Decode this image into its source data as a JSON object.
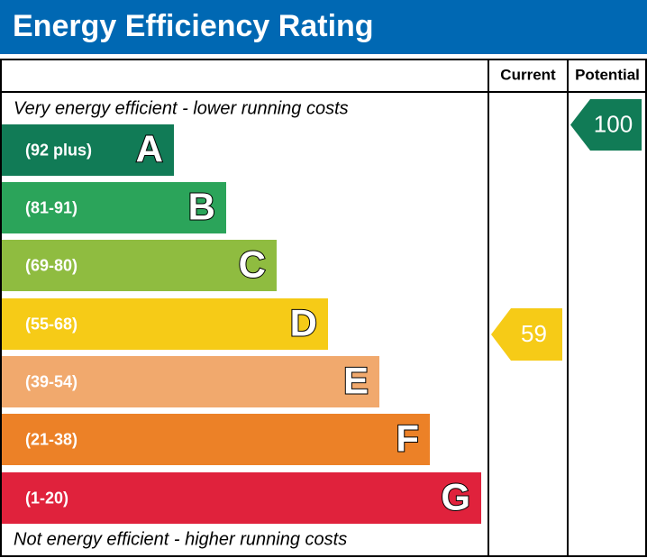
{
  "header": {
    "title": "Energy Efficiency Rating"
  },
  "table": {
    "columns": [
      "Current",
      "Potential"
    ],
    "top_note": "Very energy efficient - lower running costs",
    "bottom_note": "Not energy efficient - higher running costs",
    "bands": [
      {
        "range": "(92 plus)",
        "letter": "A",
        "color": "#117b56"
      },
      {
        "range": "(81-91)",
        "letter": "B",
        "color": "#2ba45a"
      },
      {
        "range": "(69-80)",
        "letter": "C",
        "color": "#8fbc40"
      },
      {
        "range": "(55-68)",
        "letter": "D",
        "color": "#f6cb17"
      },
      {
        "range": "(39-54)",
        "letter": "E",
        "color": "#f1a96d"
      },
      {
        "range": "(21-38)",
        "letter": "F",
        "color": "#ec8127"
      },
      {
        "range": "(1-20)",
        "letter": "G",
        "color": "#e0223c"
      }
    ],
    "current": {
      "value": "59",
      "color": "#f6cb17"
    },
    "potential": {
      "value": "100",
      "color": "#117b56"
    }
  }
}
